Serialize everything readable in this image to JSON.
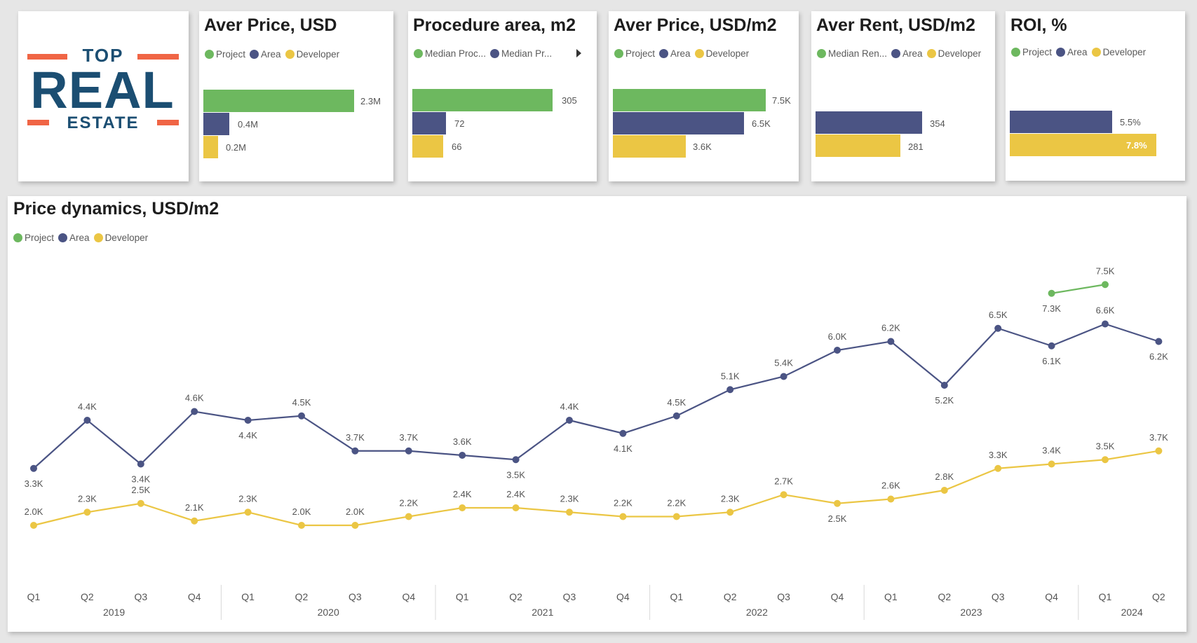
{
  "colors": {
    "project": "#6db85f",
    "area": "#4b5484",
    "developer": "#ebc644",
    "logo_blue": "#1b4e72",
    "logo_orange": "#f06545"
  },
  "logo": {
    "top": "TOP",
    "main": "REAL",
    "bottom": "ESTATE"
  },
  "legend_labels": {
    "project": "Project",
    "area": "Area",
    "developer": "Developer"
  },
  "cards": [
    {
      "title": "Aver Price, USD",
      "legend": [
        "Project",
        "Area",
        "Developer"
      ],
      "chart_data": {
        "type": "bar",
        "orientation": "horizontal",
        "categories": [
          "Project",
          "Area",
          "Developer"
        ],
        "values": [
          2.3,
          0.4,
          0.2
        ],
        "labels": [
          "2.3M",
          "0.4M",
          "0.2M"
        ],
        "unit": "M"
      }
    },
    {
      "title": "Procedure area, m2",
      "legend": [
        "Median Proc...",
        "Median Pr..."
      ],
      "chart_data": {
        "type": "bar",
        "orientation": "horizontal",
        "categories": [
          "Project",
          "Area",
          "Developer"
        ],
        "values": [
          305,
          72,
          66
        ],
        "labels": [
          "305",
          "72",
          "66"
        ]
      }
    },
    {
      "title": "Aver Price, USD/m2",
      "legend": [
        "Project",
        "Area",
        "Developer"
      ],
      "chart_data": {
        "type": "bar",
        "orientation": "horizontal",
        "categories": [
          "Project",
          "Area",
          "Developer"
        ],
        "values": [
          7.5,
          6.5,
          3.6
        ],
        "labels": [
          "7.5K",
          "6.5K",
          "3.6K"
        ],
        "unit": "K"
      }
    },
    {
      "title": "Aver Rent, USD/m2",
      "legend": [
        "Median Ren...",
        "Area",
        "Developer"
      ],
      "chart_data": {
        "type": "bar",
        "orientation": "horizontal",
        "categories": [
          "Area",
          "Developer"
        ],
        "values": [
          354,
          281
        ],
        "labels": [
          "354",
          "281"
        ]
      }
    },
    {
      "title": "ROI, %",
      "legend": [
        "Project",
        "Area",
        "Developer"
      ],
      "chart_data": {
        "type": "bar",
        "orientation": "horizontal",
        "categories": [
          "Area",
          "Developer"
        ],
        "values": [
          5.5,
          7.8
        ],
        "labels": [
          "5.5%",
          "7.8%"
        ],
        "unit": "%"
      }
    }
  ],
  "dynamics": {
    "title": "Price dynamics, USD/m2",
    "legend": [
      "Project",
      "Area",
      "Developer"
    ],
    "chart_data": {
      "type": "line",
      "quarters": [
        "Q1",
        "Q2",
        "Q3",
        "Q4",
        "Q1",
        "Q2",
        "Q3",
        "Q4",
        "Q1",
        "Q2",
        "Q3",
        "Q4",
        "Q1",
        "Q2",
        "Q3",
        "Q4",
        "Q1",
        "Q2",
        "Q3",
        "Q4",
        "Q1",
        "Q2"
      ],
      "years": [
        {
          "label": "2019",
          "quarters": 4
        },
        {
          "label": "2020",
          "quarters": 4
        },
        {
          "label": "2021",
          "quarters": 4
        },
        {
          "label": "2022",
          "quarters": 4
        },
        {
          "label": "2023",
          "quarters": 4
        },
        {
          "label": "2024",
          "quarters": 2
        }
      ],
      "ylim": [
        1.6,
        8.4
      ],
      "unit": "K",
      "series": [
        {
          "name": "Project",
          "color": "#6db85f",
          "values": [
            null,
            null,
            null,
            null,
            null,
            null,
            null,
            null,
            null,
            null,
            null,
            null,
            null,
            null,
            null,
            null,
            null,
            null,
            null,
            7.3,
            7.5,
            null
          ],
          "labels": [
            "",
            "",
            "",
            "",
            "",
            "",
            "",
            "",
            "",
            "",
            "",
            "",
            "",
            "",
            "",
            "",
            "",
            "",
            "",
            "7.3K",
            "7.5K",
            ""
          ],
          "label_pos": [
            "",
            "",
            "",
            "",
            "",
            "",
            "",
            "",
            "",
            "",
            "",
            "",
            "",
            "",
            "",
            "",
            "",
            "",
            "",
            "below",
            "above",
            ""
          ]
        },
        {
          "name": "Area",
          "color": "#4b5484",
          "values": [
            3.3,
            4.4,
            3.4,
            4.6,
            4.4,
            4.5,
            3.7,
            3.7,
            3.6,
            3.5,
            4.4,
            4.1,
            4.5,
            5.1,
            5.4,
            6.0,
            6.2,
            5.2,
            6.5,
            6.1,
            6.6,
            6.2
          ],
          "labels": [
            "3.3K",
            "4.4K",
            "3.4K",
            "4.6K",
            "4.4K",
            "4.5K",
            "3.7K",
            "3.7K",
            "3.6K",
            "3.5K",
            "4.4K",
            "4.1K",
            "4.5K",
            "5.1K",
            "5.4K",
            "6.0K",
            "6.2K",
            "5.2K",
            "6.5K",
            "6.1K",
            "6.6K",
            "6.2K"
          ],
          "label_pos": [
            "below",
            "above",
            "below",
            "above",
            "below",
            "above",
            "above",
            "above",
            "above",
            "below",
            "above",
            "below",
            "above",
            "above",
            "above",
            "above",
            "above",
            "below",
            "above",
            "below",
            "above",
            "below"
          ]
        },
        {
          "name": "Developer",
          "color": "#ebc644",
          "values": [
            2.0,
            2.3,
            2.5,
            2.1,
            2.3,
            2.0,
            2.0,
            2.2,
            2.4,
            2.4,
            2.3,
            2.2,
            2.2,
            2.3,
            2.7,
            2.5,
            2.6,
            2.8,
            3.3,
            3.4,
            3.5,
            3.7
          ],
          "labels": [
            "2.0K",
            "2.3K",
            "2.5K",
            "2.1K",
            "2.3K",
            "2.0K",
            "2.0K",
            "2.2K",
            "2.4K",
            "2.4K",
            "2.3K",
            "2.2K",
            "2.2K",
            "2.3K",
            "2.7K",
            "2.5K",
            "2.6K",
            "2.8K",
            "3.3K",
            "3.4K",
            "3.5K",
            "3.7K"
          ],
          "label_pos": [
            "above",
            "above",
            "above",
            "above",
            "above",
            "above",
            "above",
            "above",
            "above",
            "above",
            "above",
            "above",
            "above",
            "above",
            "above",
            "below",
            "above",
            "above",
            "above",
            "above",
            "above",
            "above"
          ]
        }
      ]
    }
  }
}
